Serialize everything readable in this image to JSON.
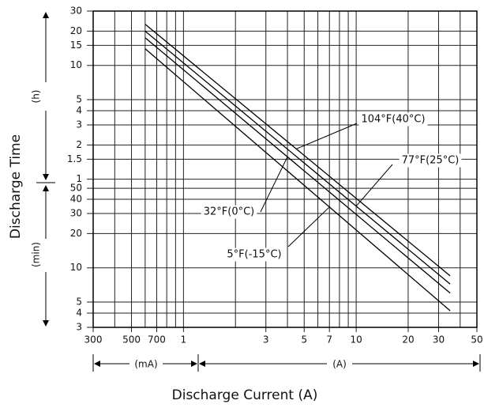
{
  "chart_data": {
    "type": "line",
    "y_label": "Discharge Time",
    "y_units": [
      "(h)",
      "(min)"
    ],
    "x_label": "Discharge Current (A)",
    "x_units": [
      "(mA)",
      "(A)"
    ],
    "log_x": true,
    "log_y": true,
    "grid": true,
    "xlim": [
      0.3,
      50
    ],
    "xticks": [
      {
        "value": 0.3,
        "label": "300"
      },
      {
        "value": 0.5,
        "label": "500"
      },
      {
        "value": 0.7,
        "label": "700"
      },
      1,
      3,
      5,
      7,
      10,
      20,
      30,
      50
    ],
    "xgrid": [
      0.3,
      0.4,
      0.5,
      0.6,
      0.7,
      0.8,
      0.9,
      1,
      2,
      3,
      4,
      5,
      6,
      7,
      8,
      9,
      10,
      20,
      30,
      40,
      50
    ],
    "ylim": [
      3,
      1800
    ],
    "yticks": [
      {
        "value": 1800,
        "label": "30"
      },
      {
        "value": 1200,
        "label": "20"
      },
      {
        "value": 900,
        "label": "15"
      },
      {
        "value": 600,
        "label": "10"
      },
      {
        "value": 300,
        "label": "5"
      },
      {
        "value": 240,
        "label": "4"
      },
      {
        "value": 180,
        "label": "3"
      },
      {
        "value": 120,
        "label": "2"
      },
      {
        "value": 90,
        "label": "1.5"
      },
      {
        "value": 60,
        "label": "1"
      },
      50,
      40,
      30,
      20,
      10,
      5,
      4,
      3
    ],
    "x": [
      0.6,
      35
    ],
    "series": [
      {
        "name": "104°F(40°C)",
        "color": "#000000",
        "values": [
          1380,
          8.5
        ]
      },
      {
        "name": "77°F(25°C)",
        "color": "#000000",
        "values": [
          1200,
          7.2
        ]
      },
      {
        "name": "32°F(0°C)",
        "color": "#000000",
        "values": [
          1050,
          6
        ]
      },
      {
        "name": "5°F(-15°C)",
        "color": "#000000",
        "values": [
          840,
          4.2
        ]
      }
    ]
  }
}
